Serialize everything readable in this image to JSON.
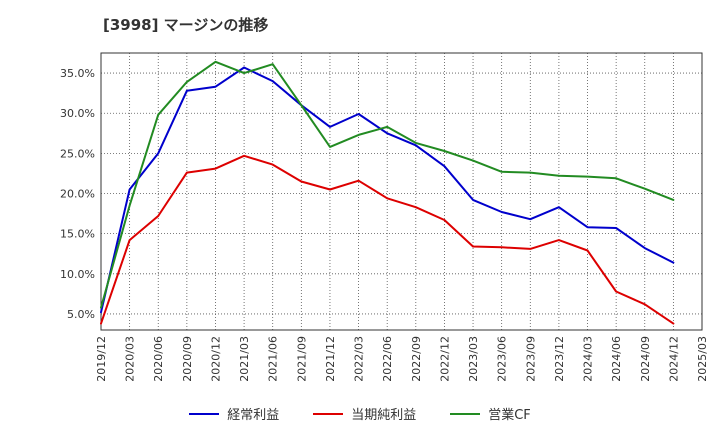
{
  "page": {
    "title": "[3998]  マージンの推移"
  },
  "chart_data": {
    "type": "line",
    "title": "[3998]  マージンの推移",
    "xlabel": "",
    "ylabel": "",
    "categories": [
      "2019/12",
      "2020/03",
      "2020/06",
      "2020/09",
      "2020/12",
      "2021/03",
      "2021/06",
      "2021/09",
      "2021/12",
      "2022/03",
      "2022/06",
      "2022/09",
      "2022/12",
      "2023/03",
      "2023/06",
      "2023/09",
      "2023/12",
      "2024/03",
      "2024/06",
      "2024/09",
      "2024/12",
      "2025/03"
    ],
    "yticks": [
      "5.0%",
      "10.0%",
      "15.0%",
      "20.0%",
      "25.0%",
      "30.0%",
      "35.0%"
    ],
    "ylim": [
      3.0,
      37.5
    ],
    "grid": true,
    "legend_position": "bottom",
    "series": [
      {
        "name": "経常利益",
        "color": "#0000cc",
        "values": [
          5.2,
          20.5,
          25.0,
          32.8,
          33.3,
          35.7,
          34.0,
          31.0,
          28.3,
          29.9,
          27.5,
          26.0,
          23.4,
          19.2,
          17.7,
          16.8,
          18.3,
          15.8,
          15.7,
          13.2,
          11.4,
          null
        ]
      },
      {
        "name": "当期純利益",
        "color": "#dd0000",
        "values": [
          3.8,
          14.2,
          17.2,
          22.6,
          23.1,
          24.7,
          23.6,
          21.5,
          20.5,
          21.6,
          19.4,
          18.3,
          16.7,
          13.4,
          13.3,
          13.1,
          14.2,
          12.9,
          7.8,
          6.2,
          3.8,
          null
        ]
      },
      {
        "name": "営業CF",
        "color": "#228b22",
        "values": [
          5.8,
          18.5,
          29.8,
          33.9,
          36.4,
          35.0,
          36.1,
          31.0,
          25.8,
          27.3,
          28.3,
          26.3,
          25.3,
          24.1,
          22.7,
          22.6,
          22.2,
          22.1,
          21.9,
          20.6,
          19.2,
          null
        ]
      }
    ]
  },
  "legend": {
    "items": [
      {
        "label": "経常利益",
        "color": "#0000cc"
      },
      {
        "label": "当期純利益",
        "color": "#dd0000"
      },
      {
        "label": "営業CF",
        "color": "#228b22"
      }
    ]
  }
}
